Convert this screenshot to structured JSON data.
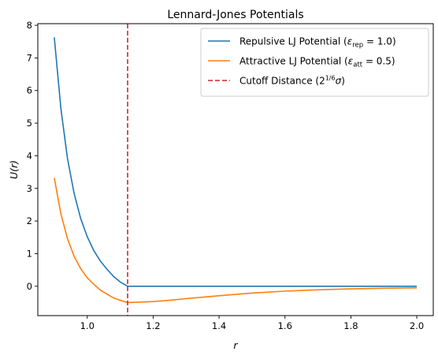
{
  "chart_data": {
    "type": "line",
    "title": "Lennard-Jones Potentials",
    "xlabel": "r",
    "ylabel": "U(r)",
    "xlim": [
      0.85,
      2.05
    ],
    "ylim": [
      -0.9,
      8.05
    ],
    "xticks": [
      1.0,
      1.2,
      1.4,
      1.6,
      1.8,
      2.0
    ],
    "xtick_labels": [
      "1.0",
      "1.2",
      "1.4",
      "1.6",
      "1.8",
      "2.0"
    ],
    "yticks": [
      0,
      1,
      2,
      3,
      4,
      5,
      6,
      7,
      8
    ],
    "ytick_labels": [
      "0",
      "1",
      "2",
      "3",
      "4",
      "5",
      "6",
      "7",
      "8"
    ],
    "grid": false,
    "legend_placement": "top-right",
    "series": [
      {
        "name": "Repulsive LJ Potential (ε_rep = 1.0)",
        "legend": {
          "prefix": "Repulsive LJ Potential (",
          "symbol": "ε",
          "sub": "rep",
          "suffix": " = 1.0)"
        },
        "color": "#1f77b4",
        "style": "solid",
        "x": [
          0.9,
          0.92,
          0.94,
          0.96,
          0.98,
          1.0,
          1.02,
          1.04,
          1.06,
          1.08,
          1.1,
          1.1225,
          1.2,
          1.4,
          1.6,
          1.8,
          2.0
        ],
        "y": [
          7.63,
          5.45,
          3.92,
          2.85,
          2.08,
          1.52,
          1.09,
          0.77,
          0.52,
          0.3,
          0.13,
          0.0,
          0.0,
          0.0,
          0.0,
          0.0,
          0.0
        ]
      },
      {
        "name": "Attractive LJ Potential (ε_att = 0.5)",
        "legend": {
          "prefix": "Attractive LJ Potential (",
          "symbol": "ε",
          "sub": "att",
          "suffix": " = 0.5)"
        },
        "color": "#ff7f0e",
        "style": "solid",
        "x": [
          0.9,
          0.92,
          0.94,
          0.96,
          0.98,
          1.0,
          1.02,
          1.04,
          1.06,
          1.08,
          1.1,
          1.1225,
          1.15,
          1.2,
          1.25,
          1.3,
          1.4,
          1.5,
          1.6,
          1.7,
          1.8,
          1.9,
          2.0
        ],
        "y": [
          3.32,
          2.22,
          1.46,
          0.92,
          0.54,
          0.26,
          0.06,
          -0.12,
          -0.24,
          -0.36,
          -0.43,
          -0.5,
          -0.49,
          -0.47,
          -0.43,
          -0.38,
          -0.29,
          -0.21,
          -0.15,
          -0.11,
          -0.08,
          -0.06,
          -0.05
        ]
      },
      {
        "name": "Cutoff Distance (2^(1/6)σ)",
        "legend": {
          "prefix": "Cutoff Distance (2",
          "sup": "1/6",
          "symbol": "σ",
          "suffix": ")"
        },
        "color": "#d62728",
        "style": "dashed",
        "orientation": "vertical",
        "x_value": 1.1225
      }
    ]
  }
}
